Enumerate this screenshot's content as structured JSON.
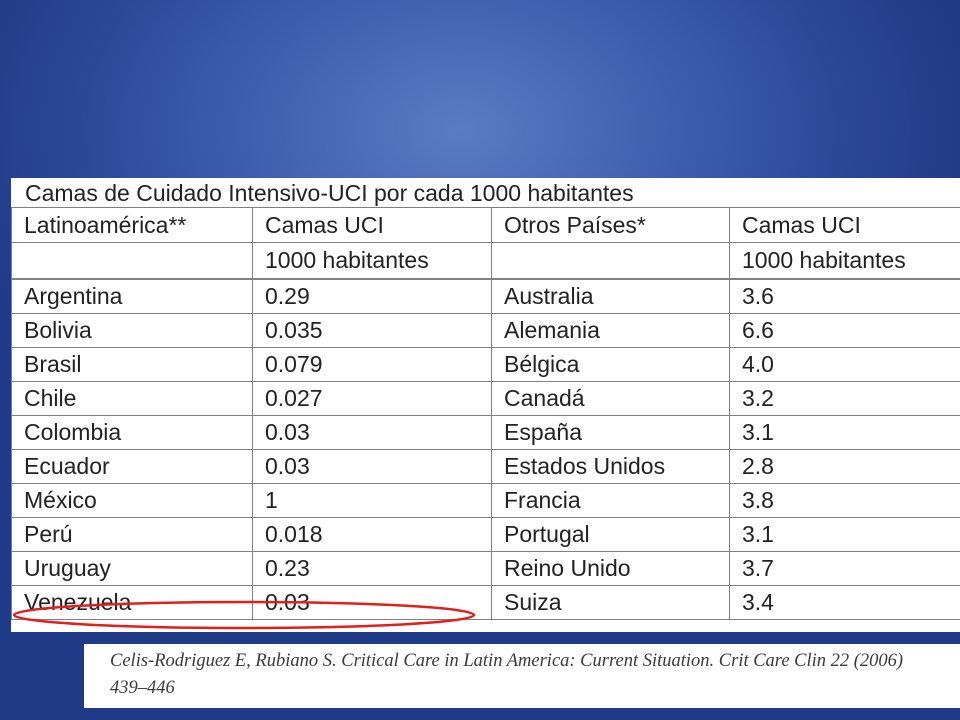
{
  "table": {
    "title": "Camas de Cuidado Intensivo-UCI por cada 1000 habitantes",
    "header": {
      "col1": "Latinoamérica**",
      "col2": "Camas UCI",
      "col2_sub": "1000 habitantes",
      "col3": "Otros Países*",
      "col4": "Camas UCI",
      "col4_sub": "1000 habitantes"
    },
    "rows": [
      {
        "latam": "Argentina",
        "latam_beds": "0.29",
        "other": "Australia",
        "other_beds": "3.6"
      },
      {
        "latam": "Bolivia",
        "latam_beds": "0.035",
        "other": "Alemania",
        "other_beds": "6.6"
      },
      {
        "latam": "Brasil",
        "latam_beds": "0.079",
        "other": "Bélgica",
        "other_beds": "4.0"
      },
      {
        "latam": "Chile",
        "latam_beds": "0.027",
        "other": "Canadá",
        "other_beds": "3.2"
      },
      {
        "latam": "Colombia",
        "latam_beds": "0.03",
        "other": "España",
        "other_beds": "3.1"
      },
      {
        "latam": "Ecuador",
        "latam_beds": "0.03",
        "other": "Estados Unidos",
        "other_beds": "2.8"
      },
      {
        "latam": "México",
        "latam_beds": "1",
        "other": "Francia",
        "other_beds": "3.8"
      },
      {
        "latam": "Perú",
        "latam_beds": "0.018",
        "other": "Portugal",
        "other_beds": "3.1"
      },
      {
        "latam": "Uruguay",
        "latam_beds": "0.23",
        "other": "Reino Unido",
        "other_beds": "3.7"
      },
      {
        "latam": "Venezuela",
        "latam_beds": "0.03",
        "other": "Suiza",
        "other_beds": "3.4"
      }
    ],
    "highlight_color": "#e0201e"
  },
  "citation": {
    "text": "Celis-Rodriguez E, Rubiano S. Critical Care in Latin America: Current Situation. Crit Care Clin 22 (2006) 439–446"
  },
  "colors": {
    "background": "#3f5fae",
    "panel": "#ffffff",
    "grid": "#808080"
  }
}
